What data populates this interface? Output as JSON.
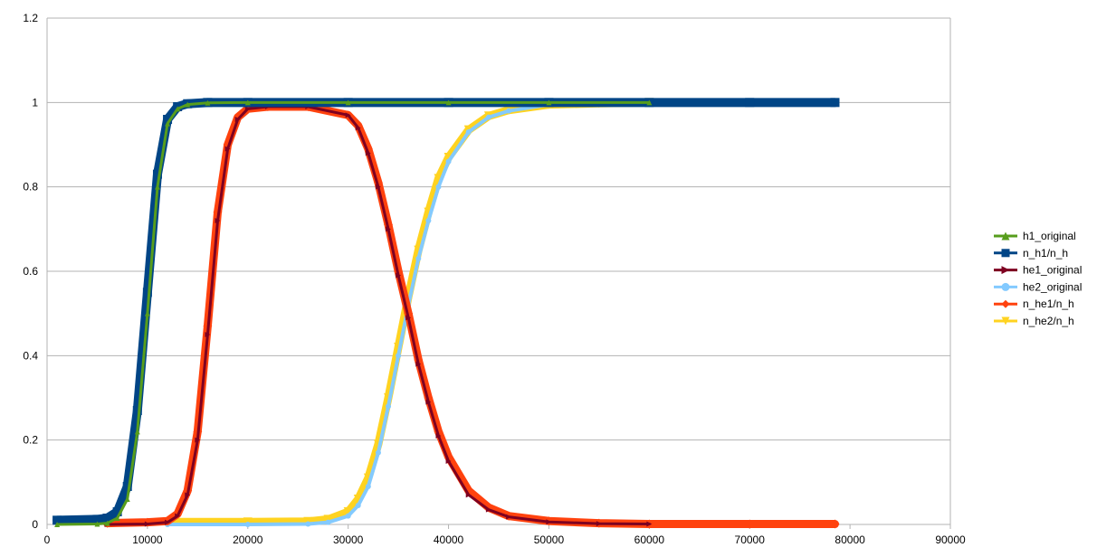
{
  "chart_data": {
    "type": "line",
    "title": "",
    "xlabel": "",
    "ylabel": "",
    "xlim": [
      0,
      90000
    ],
    "ylim": [
      0,
      1.2
    ],
    "xticks": [
      0,
      10000,
      20000,
      30000,
      40000,
      50000,
      60000,
      70000,
      80000,
      90000
    ],
    "yticks": [
      0,
      0.2,
      0.4,
      0.6,
      0.8,
      1,
      1.2
    ],
    "grid": "horizontal",
    "legend_position": "right",
    "series": [
      {
        "name": "h1_original",
        "color": "#579D1C",
        "marker": "triangle-up",
        "x": [
          1000,
          5000,
          6000,
          7000,
          8000,
          9000,
          10000,
          11000,
          12000,
          13000,
          14000,
          16000,
          20000,
          30000,
          40000,
          50000,
          60000
        ],
        "y": [
          0,
          0.001,
          0.003,
          0.015,
          0.06,
          0.22,
          0.5,
          0.8,
          0.95,
          0.985,
          0.995,
          0.999,
          1,
          1,
          1,
          1,
          1
        ]
      },
      {
        "name": "n_h1/n_h",
        "color": "#004586",
        "marker": "square",
        "x": [
          1000,
          5000,
          6000,
          7000,
          8000,
          9000,
          10000,
          11000,
          12000,
          13000,
          14000,
          16000,
          20000,
          30000,
          40000,
          50000,
          60000,
          70000,
          78500
        ],
        "y": [
          0.01,
          0.012,
          0.015,
          0.03,
          0.09,
          0.27,
          0.55,
          0.83,
          0.96,
          0.99,
          0.997,
          1,
          1,
          1,
          1,
          1,
          1,
          1,
          1
        ]
      },
      {
        "name": "he1_original",
        "color": "#7E0021",
        "marker": "triangle-right",
        "x": [
          6000,
          10000,
          12000,
          13000,
          14000,
          15000,
          16000,
          17000,
          18000,
          19000,
          20000,
          22000,
          26000,
          30000,
          31000,
          32000,
          33000,
          34000,
          35000,
          36000,
          37000,
          38000,
          39000,
          40000,
          42000,
          44000,
          46000,
          50000,
          55000,
          60000
        ],
        "y": [
          0,
          0.001,
          0.005,
          0.02,
          0.07,
          0.2,
          0.45,
          0.72,
          0.89,
          0.96,
          0.985,
          0.99,
          0.99,
          0.97,
          0.94,
          0.88,
          0.8,
          0.7,
          0.59,
          0.49,
          0.38,
          0.29,
          0.21,
          0.15,
          0.07,
          0.035,
          0.018,
          0.006,
          0.002,
          0.001
        ]
      },
      {
        "name": "he2_original",
        "color": "#83CAFF",
        "marker": "circle",
        "x": [
          12000,
          20000,
          26000,
          28000,
          30000,
          31000,
          32000,
          33000,
          34000,
          35000,
          36000,
          37000,
          38000,
          39000,
          40000,
          42000,
          44000,
          46000,
          50000,
          55000,
          60000
        ],
        "y": [
          0,
          0,
          0.001,
          0.005,
          0.02,
          0.045,
          0.09,
          0.17,
          0.28,
          0.4,
          0.52,
          0.63,
          0.72,
          0.8,
          0.86,
          0.93,
          0.965,
          0.98,
          0.995,
          0.998,
          1
        ]
      },
      {
        "name": "n_he1/n_h",
        "color": "#FF420E",
        "marker": "diamond",
        "x": [
          6000,
          10000,
          12000,
          13000,
          14000,
          15000,
          16000,
          17000,
          18000,
          19000,
          20000,
          22000,
          26000,
          30000,
          31000,
          32000,
          33000,
          34000,
          35000,
          36000,
          37000,
          38000,
          39000,
          40000,
          42000,
          44000,
          46000,
          50000,
          55000,
          60000,
          70000,
          78500
        ],
        "y": [
          0.003,
          0.005,
          0.008,
          0.025,
          0.08,
          0.22,
          0.47,
          0.74,
          0.9,
          0.965,
          0.985,
          0.99,
          0.99,
          0.97,
          0.945,
          0.89,
          0.81,
          0.71,
          0.6,
          0.5,
          0.39,
          0.3,
          0.22,
          0.16,
          0.08,
          0.04,
          0.02,
          0.008,
          0.003,
          0.001,
          0.001,
          0.001
        ]
      },
      {
        "name": "n_he2/n_h",
        "color": "#FFD320",
        "marker": "triangle-down",
        "x": [
          12000,
          20000,
          26000,
          28000,
          30000,
          31000,
          32000,
          33000,
          34000,
          35000,
          36000,
          37000,
          38000,
          39000,
          40000,
          42000,
          44000,
          46000,
          50000,
          55000,
          60000
        ],
        "y": [
          0.006,
          0.006,
          0.007,
          0.012,
          0.03,
          0.06,
          0.11,
          0.19,
          0.3,
          0.42,
          0.54,
          0.65,
          0.74,
          0.82,
          0.87,
          0.935,
          0.968,
          0.982,
          0.995,
          0.998,
          1
        ]
      }
    ]
  }
}
